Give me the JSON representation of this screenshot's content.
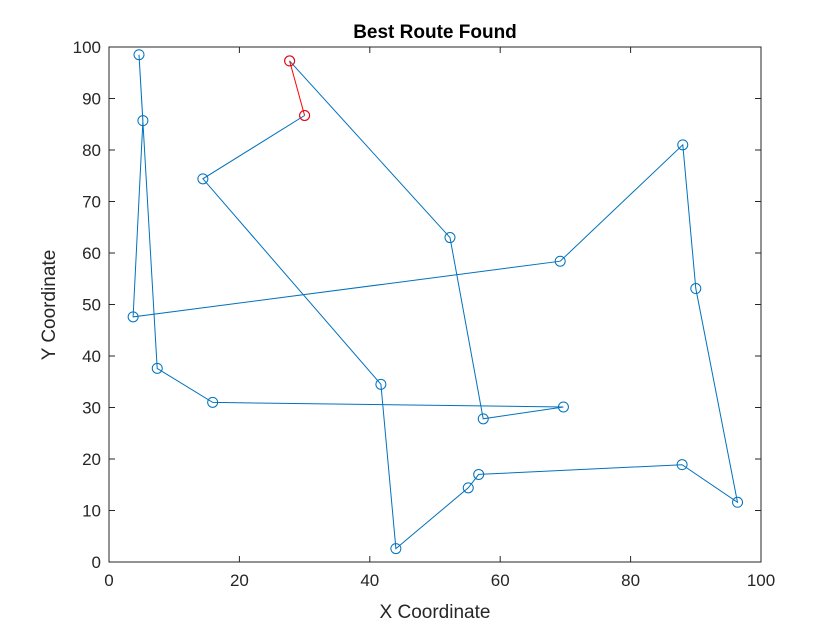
{
  "chart_data": {
    "type": "line",
    "title": "Best Route Found",
    "xlabel": "X Coordinate",
    "ylabel": "Y Coordinate",
    "xlim": [
      0,
      100
    ],
    "ylim": [
      0,
      100
    ],
    "xticks": [
      0,
      20,
      40,
      60,
      80,
      100
    ],
    "yticks": [
      0,
      10,
      20,
      30,
      40,
      50,
      60,
      70,
      80,
      90,
      100
    ],
    "grid": false,
    "marker": "circle",
    "route_color": "#0072BD",
    "closing_segment_color": "#FF0000",
    "route": [
      {
        "x": 27.7,
        "y": 97.3
      },
      {
        "x": 52.3,
        "y": 63.0
      },
      {
        "x": 57.4,
        "y": 27.8
      },
      {
        "x": 69.7,
        "y": 30.1
      },
      {
        "x": 15.9,
        "y": 31.0
      },
      {
        "x": 7.4,
        "y": 37.6
      },
      {
        "x": 4.6,
        "y": 98.5
      },
      {
        "x": 5.2,
        "y": 85.7
      },
      {
        "x": 3.7,
        "y": 47.6
      },
      {
        "x": 69.2,
        "y": 58.4
      },
      {
        "x": 88.0,
        "y": 81.0
      },
      {
        "x": 90.0,
        "y": 53.1
      },
      {
        "x": 96.4,
        "y": 11.6
      },
      {
        "x": 87.9,
        "y": 18.9
      },
      {
        "x": 56.7,
        "y": 17.0
      },
      {
        "x": 55.1,
        "y": 14.4
      },
      {
        "x": 44.0,
        "y": 2.6
      },
      {
        "x": 41.7,
        "y": 34.5
      },
      {
        "x": 14.4,
        "y": 74.4
      },
      {
        "x": 30.0,
        "y": 86.7
      }
    ]
  }
}
